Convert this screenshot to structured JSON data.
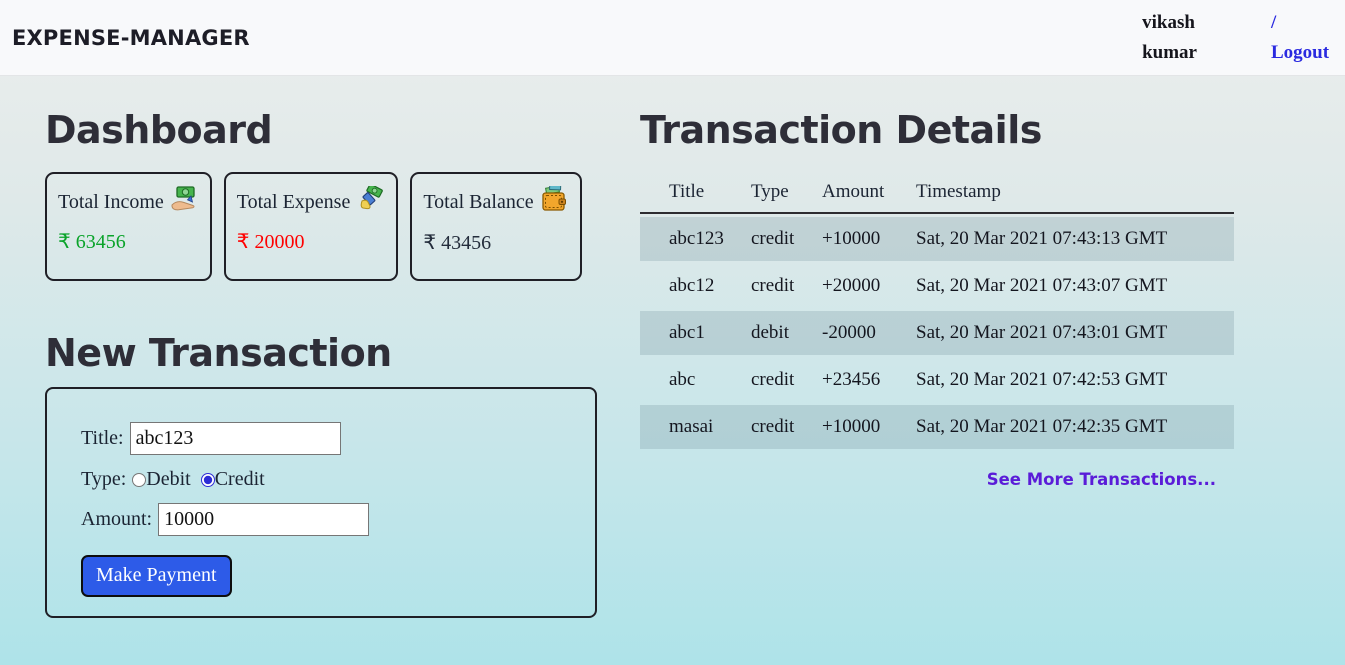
{
  "header": {
    "title": "EXPENSE-MANAGER",
    "user_name_line1": "vikash",
    "user_name_line2": "kumar",
    "separator": "/",
    "logout_label": "Logout"
  },
  "dashboard": {
    "heading": "Dashboard",
    "cards": [
      {
        "label": "Total Income",
        "icon": "income-hand-money-icon",
        "value_text": "₹ 63456",
        "value_color": "#0aa32a"
      },
      {
        "label": "Total Expense",
        "icon": "expense-hand-money-icon",
        "value_text": "₹ 20000",
        "value_color": "#ff0000"
      },
      {
        "label": "Total Balance",
        "icon": "wallet-icon",
        "value_text": "₹ 43456",
        "value_color": "#232c3b"
      }
    ]
  },
  "new_transaction": {
    "heading": "New Transaction",
    "title_label": "Title:",
    "title_value": "abc123",
    "type_label": "Type:",
    "type_options": [
      {
        "label": "Debit",
        "checked": false
      },
      {
        "label": "Credit",
        "checked": true
      }
    ],
    "amount_label": "Amount:",
    "amount_value": "10000",
    "submit_label": "Make Payment"
  },
  "transactions": {
    "heading": "Transaction Details",
    "columns": [
      "Title",
      "Type",
      "Amount",
      "Timestamp"
    ],
    "rows": [
      {
        "title": "abc123",
        "type": "credit",
        "amount": "+10000",
        "timestamp": "Sat, 20 Mar 2021 07:43:13 GMT"
      },
      {
        "title": "abc12",
        "type": "credit",
        "amount": "+20000",
        "timestamp": "Sat, 20 Mar 2021 07:43:07 GMT"
      },
      {
        "title": "abc1",
        "type": "debit",
        "amount": "-20000",
        "timestamp": "Sat, 20 Mar 2021 07:43:01 GMT"
      },
      {
        "title": "abc",
        "type": "credit",
        "amount": "+23456",
        "timestamp": "Sat, 20 Mar 2021 07:42:53 GMT"
      },
      {
        "title": "masai",
        "type": "credit",
        "amount": "+10000",
        "timestamp": "Sat, 20 Mar 2021 07:42:35 GMT"
      }
    ],
    "see_more_label": "See More Transactions..."
  },
  "colors": {
    "credit_green": "#0aa32a",
    "debit_red": "#ff0000",
    "link_blue": "#2a2ae0",
    "see_more_purple": "#5a1cd8",
    "button_blue": "#2d5be8",
    "stripe_row": "rgba(97,128,139,0.22)",
    "page_gradient_top": "#eceeed",
    "page_gradient_bottom": "#aee3e9",
    "header_bg": "#f8f9fb"
  }
}
